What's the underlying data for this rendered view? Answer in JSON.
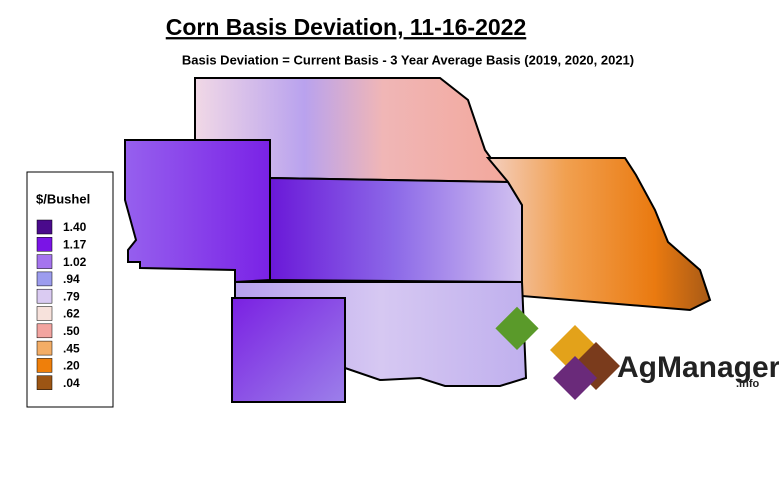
{
  "header": {
    "title": "Corn Basis Deviation, 11-16-2022",
    "subtitle": "Basis Deviation = Current Basis - 3 Year Average Basis (2019, 2020, 2021)"
  },
  "legend": {
    "title": "$/Bushel",
    "entries": [
      {
        "label": "1.40",
        "color": "#4a0a8c"
      },
      {
        "label": "1.17",
        "color": "#7a14e6"
      },
      {
        "label": "1.02",
        "color": "#a574ee"
      },
      {
        "label": ".94",
        "color": "#9c9cee"
      },
      {
        "label": ".79",
        "color": "#dacbf2"
      },
      {
        "label": ".62",
        "color": "#f7e2dc"
      },
      {
        "label": ".50",
        "color": "#f2a4a0"
      },
      {
        "label": ".45",
        "color": "#f3ad66"
      },
      {
        "label": ".20",
        "color": "#ef7f0a"
      },
      {
        "label": ".04",
        "color": "#9c5514"
      }
    ]
  },
  "logo": {
    "name": "AgManager",
    "suffix": ".info"
  }
}
